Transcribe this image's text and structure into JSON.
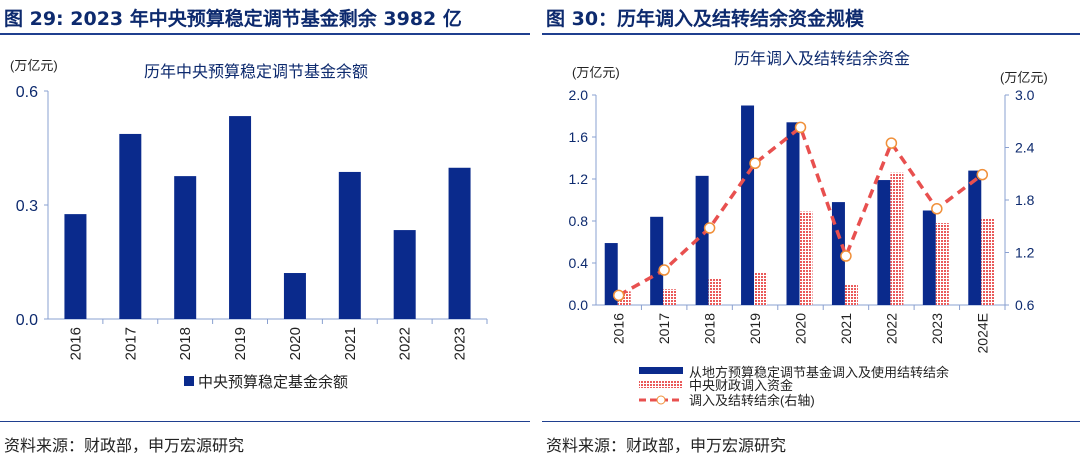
{
  "left": {
    "title": "图 29: 2023 年中央预算稳定调节基金剩余 3982 亿",
    "source": "资料来源：财政部，申万宏源研究"
  },
  "right": {
    "title": "图 30：历年调入及结转结余资金规模",
    "source": "资料来源：财政部，申万宏源研究"
  },
  "chart_data": [
    {
      "type": "bar",
      "title": "历年中央预算稳定调节基金余额",
      "ylabel": "(万亿元)",
      "ylim": [
        0,
        0.6
      ],
      "yticks": [
        "0.0",
        "0.3",
        "0.6"
      ],
      "categories": [
        "2016",
        "2017",
        "2018",
        "2019",
        "2020",
        "2021",
        "2022",
        "2023"
      ],
      "series": [
        {
          "name": "中央预算稳定基金余额",
          "values": [
            0.276,
            0.487,
            0.376,
            0.534,
            0.121,
            0.387,
            0.234,
            0.398
          ],
          "color": "#0a2a8c"
        }
      ],
      "legend": "bottom",
      "grid": false
    },
    {
      "type": "bar",
      "title": "历年调入及结转结余资金",
      "ylabel": "(万亿元)",
      "ylabel_right": "(万亿元)",
      "ylim": [
        0,
        2.0
      ],
      "ylim_right": [
        0.6,
        3.0
      ],
      "yticks": [
        "0.0",
        "0.4",
        "0.8",
        "1.2",
        "1.6",
        "2.0"
      ],
      "yticks_right": [
        "0.6",
        "1.2",
        "1.8",
        "2.4",
        "3.0"
      ],
      "categories": [
        "2016",
        "2017",
        "2018",
        "2019",
        "2020",
        "2021",
        "2022",
        "2023",
        "2024E"
      ],
      "series": [
        {
          "name": "从地方预算稳定调节基金调入及使用结转结余",
          "type": "bar",
          "axis": "left",
          "color": "#0a2a8c",
          "values": [
            0.59,
            0.84,
            1.23,
            1.9,
            1.74,
            0.98,
            1.19,
            0.9,
            1.28
          ]
        },
        {
          "name": "中央财政调入资金",
          "type": "bar",
          "axis": "left",
          "color": "#f08080",
          "values": [
            0.13,
            0.15,
            0.25,
            0.31,
            0.89,
            0.19,
            1.26,
            0.78,
            0.82
          ]
        },
        {
          "name": "调入及结转结余(右轴)",
          "type": "line",
          "axis": "right",
          "color": "#e8504f",
          "marker": "#f0903a",
          "values": [
            0.71,
            1.0,
            1.48,
            2.22,
            2.63,
            1.16,
            2.45,
            1.7,
            2.09
          ]
        }
      ],
      "legend": "bottom",
      "grid": false
    }
  ]
}
